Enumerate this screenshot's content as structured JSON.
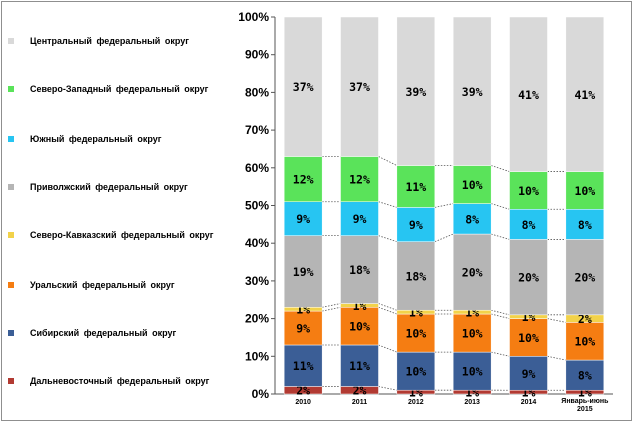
{
  "chart_data": {
    "type": "bar",
    "stacked": true,
    "percent": true,
    "categories": [
      "2010",
      "2011",
      "2012",
      "2013",
      "2014",
      "Январь-июнь 2015"
    ],
    "series": [
      {
        "name": "Дальневосточный федеральный округ",
        "color": "#b23a32",
        "values": [
          2,
          2,
          1,
          1,
          1,
          1
        ],
        "labels": [
          "2%",
          "2%",
          "1%",
          "1%",
          "1%",
          "1%"
        ]
      },
      {
        "name": "Сибирский федеральный округ",
        "color": "#3b5e96",
        "values": [
          11,
          11,
          10,
          10,
          9,
          8
        ],
        "labels": [
          "11%",
          "11%",
          "10%",
          "10%",
          "9%",
          "8%"
        ]
      },
      {
        "name": "Уральский федеральный округ",
        "color": "#f57d12",
        "values": [
          9,
          10,
          10,
          10,
          10,
          10
        ],
        "labels": [
          "9%",
          "10%",
          "10%",
          "10%",
          "10%",
          "10%"
        ]
      },
      {
        "name": "Северо-Кавказский федеральный округ",
        "color": "#f2d24a",
        "values": [
          1,
          1,
          1,
          1,
          1,
          2
        ],
        "labels": [
          "1%",
          "1%",
          "1%",
          "1%",
          "1%",
          "2%"
        ]
      },
      {
        "name": "Приволжский федеральный округ",
        "color": "#b5b5b5",
        "values": [
          19,
          18,
          18,
          20,
          20,
          20
        ],
        "labels": [
          "19%",
          "18%",
          "18%",
          "20%",
          "20%",
          "20%"
        ]
      },
      {
        "name": "Южный федеральный округ",
        "color": "#27c5f2",
        "values": [
          9,
          9,
          9,
          8,
          8,
          8
        ],
        "labels": [
          "9%",
          "9%",
          "9%",
          "8%",
          "8%",
          "8%"
        ]
      },
      {
        "name": "Северо-Западный федеральный округ",
        "color": "#5ae35a",
        "values": [
          12,
          12,
          11,
          10,
          10,
          10
        ],
        "labels": [
          "12%",
          "12%",
          "11%",
          "10%",
          "10%",
          "10%"
        ]
      },
      {
        "name": "Центральный федеральный округ",
        "color": "#d9d9d9",
        "values": [
          37,
          37,
          39,
          39,
          41,
          41
        ],
        "labels": [
          "37%",
          "37%",
          "39%",
          "39%",
          "41%",
          "41%"
        ]
      }
    ],
    "ylim": [
      0,
      100
    ],
    "yticks": [
      "0%",
      "10%",
      "20%",
      "30%",
      "40%",
      "50%",
      "60%",
      "70%",
      "80%",
      "90%",
      "100%"
    ],
    "legend_position": "left"
  },
  "legend": {
    "items": [
      {
        "label": "Центральный федеральный округ",
        "color": "#d9d9d9"
      },
      {
        "label": "Северо-Западный федеральный округ",
        "color": "#5ae35a"
      },
      {
        "label": "Южный федеральный округ",
        "color": "#27c5f2"
      },
      {
        "label": "Приволжский федеральный округ",
        "color": "#b5b5b5"
      },
      {
        "label": "Северо-Кавказский федеральный округ",
        "color": "#f2d24a"
      },
      {
        "label": "Уральский федеральный округ",
        "color": "#f57d12"
      },
      {
        "label": "Сибирский федеральный округ",
        "color": "#3b5e96"
      },
      {
        "label": "Дальневосточный федеральный округ",
        "color": "#b23a32"
      }
    ]
  }
}
